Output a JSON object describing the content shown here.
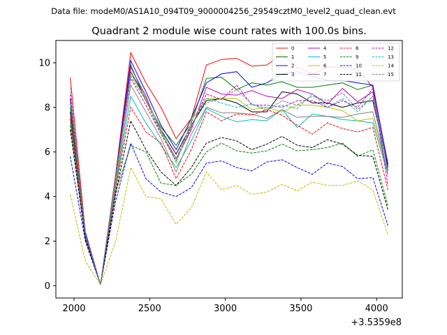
{
  "header": {
    "file_label": "Data file: modeM0/AS1A10_094T09_9000004256_29549cztM0_level2_quad_clean.evt"
  },
  "chart_data": {
    "type": "line",
    "title": "Quadrant 2 module wise count rates with 100.0s bins.",
    "xlabel": "",
    "ylabel": "",
    "x_offset_label": "+3.5359e8",
    "xlim": [
      1880,
      4170
    ],
    "ylim": [
      -0.55,
      11.0
    ],
    "x_ticks": [
      2000,
      2500,
      3000,
      3500,
      4000
    ],
    "y_ticks": [
      0,
      2,
      4,
      6,
      8,
      10
    ],
    "x_tick_labels": [
      "2000",
      "2500",
      "3000",
      "3500",
      "4000"
    ],
    "y_tick_labels": [
      "0",
      "2",
      "4",
      "6",
      "8",
      "10"
    ],
    "grid": false,
    "legend_position": "top-right",
    "x": [
      1975,
      2075,
      2175,
      2275,
      2375,
      2475,
      2575,
      2675,
      2775,
      2875,
      2975,
      3075,
      3175,
      3275,
      3375,
      3475,
      3575,
      3675,
      3775,
      3875,
      3975,
      4075
    ],
    "series": [
      {
        "name": "0",
        "color": "#ff0000",
        "dash": "solid",
        "values": [
          9.35,
          2.4,
          0.05,
          5.0,
          10.45,
          9.1,
          8.0,
          6.6,
          7.5,
          9.9,
          10.15,
          10.2,
          9.85,
          9.9,
          10.4,
          9.8,
          9.5,
          9.8,
          9.8,
          9.7,
          8.9,
          5.5
        ]
      },
      {
        "name": "1",
        "color": "#008000",
        "dash": "solid",
        "values": [
          8.0,
          2.3,
          0.05,
          4.8,
          9.9,
          8.3,
          7.1,
          6.3,
          7.3,
          9.3,
          9.35,
          8.8,
          9.1,
          9.0,
          9.15,
          8.9,
          8.9,
          9.0,
          9.1,
          8.8,
          9.0,
          5.4
        ]
      },
      {
        "name": "2",
        "color": "#0000ff",
        "dash": "solid",
        "values": [
          8.4,
          2.4,
          0.05,
          4.9,
          10.1,
          8.7,
          7.2,
          6.1,
          7.5,
          9.1,
          9.5,
          9.6,
          8.9,
          9.1,
          9.5,
          9.6,
          9.4,
          9.2,
          9.2,
          9.1,
          9.0,
          5.4
        ]
      },
      {
        "name": "3",
        "color": "#000000",
        "dash": "solid",
        "values": [
          7.8,
          2.3,
          0.05,
          4.7,
          9.6,
          8.4,
          7.0,
          5.9,
          7.2,
          8.3,
          8.4,
          8.2,
          7.8,
          7.8,
          8.7,
          8.6,
          8.2,
          8.2,
          8.0,
          8.2,
          8.3,
          5.3
        ]
      },
      {
        "name": "4",
        "color": "#bf00bf",
        "dash": "solid",
        "values": [
          8.3,
          2.3,
          0.05,
          4.8,
          9.8,
          8.5,
          6.9,
          5.7,
          7.0,
          8.9,
          8.6,
          8.55,
          8.75,
          8.5,
          8.4,
          8.8,
          8.6,
          8.15,
          8.85,
          8.25,
          8.7,
          5.2
        ]
      },
      {
        "name": "5",
        "color": "#00bfbf",
        "dash": "solid",
        "values": [
          7.4,
          2.2,
          0.05,
          4.4,
          8.5,
          7.3,
          6.3,
          5.3,
          6.5,
          7.95,
          7.6,
          7.35,
          7.45,
          7.4,
          7.9,
          7.1,
          7.7,
          7.6,
          7.45,
          7.4,
          7.3,
          5.0
        ]
      },
      {
        "name": "6",
        "color": "#bfbf00",
        "dash": "solid",
        "values": [
          7.6,
          2.2,
          0.05,
          4.6,
          9.5,
          8.4,
          7.0,
          5.5,
          7.4,
          8.4,
          8.4,
          8.4,
          7.9,
          8.0,
          7.8,
          8.1,
          8.1,
          8.0,
          7.85,
          7.4,
          7.5,
          5.1
        ]
      },
      {
        "name": "7",
        "color": "#808080",
        "dash": "solid",
        "values": [
          7.5,
          2.2,
          0.05,
          4.5,
          9.0,
          7.8,
          6.6,
          5.1,
          6.8,
          8.0,
          7.75,
          7.75,
          7.7,
          7.5,
          7.9,
          7.55,
          7.6,
          7.6,
          7.55,
          7.7,
          7.8,
          5.1
        ]
      },
      {
        "name": "8",
        "color": "#ff0000",
        "dash": "dashed",
        "values": [
          7.5,
          2.2,
          0.05,
          4.3,
          8.0,
          6.9,
          6.4,
          4.8,
          6.1,
          7.8,
          7.4,
          7.7,
          7.65,
          7.9,
          7.65,
          7.2,
          6.8,
          7.3,
          7.05,
          6.9,
          7.1,
          4.3
        ]
      },
      {
        "name": "9",
        "color": "#008000",
        "dash": "dashed",
        "values": [
          7.2,
          2.1,
          0.05,
          4.2,
          6.3,
          6.0,
          4.6,
          4.5,
          5.0,
          6.0,
          6.4,
          6.05,
          5.95,
          6.05,
          6.35,
          6.05,
          6.1,
          6.2,
          6.4,
          5.8,
          6.1,
          3.6
        ]
      },
      {
        "name": "10",
        "color": "#0000ff",
        "dash": "dashed",
        "values": [
          5.8,
          2.0,
          0.05,
          3.8,
          6.4,
          4.8,
          4.2,
          4.0,
          4.4,
          5.5,
          5.6,
          5.3,
          5.15,
          5.55,
          5.65,
          5.3,
          5.0,
          5.5,
          5.35,
          4.8,
          4.85,
          2.7
        ]
      },
      {
        "name": "11",
        "color": "#000000",
        "dash": "dashed",
        "values": [
          7.0,
          2.1,
          0.05,
          4.1,
          7.4,
          6.1,
          5.1,
          4.5,
          5.3,
          6.4,
          6.65,
          6.5,
          6.1,
          6.35,
          6.7,
          6.3,
          6.2,
          6.55,
          6.35,
          5.85,
          5.8,
          3.4
        ]
      },
      {
        "name": "12",
        "color": "#bf00bf",
        "dash": "dashed",
        "values": [
          8.6,
          2.3,
          0.05,
          4.9,
          9.3,
          8.1,
          6.8,
          5.6,
          7.1,
          8.6,
          8.35,
          9.0,
          8.1,
          8.1,
          8.0,
          8.3,
          8.3,
          8.0,
          8.3,
          8.0,
          8.85,
          4.5
        ]
      },
      {
        "name": "13",
        "color": "#00bfbf",
        "dash": "dashed",
        "values": [
          8.2,
          2.3,
          0.05,
          4.8,
          9.6,
          8.3,
          6.9,
          5.6,
          7.2,
          8.4,
          8.2,
          8.0,
          8.15,
          7.95,
          8.1,
          7.95,
          8.6,
          8.0,
          8.4,
          7.8,
          8.5,
          5.2
        ]
      },
      {
        "name": "14",
        "color": "#bfbf00",
        "dash": "dashed",
        "values": [
          4.1,
          1.1,
          0.05,
          2.0,
          5.3,
          4.0,
          3.9,
          2.75,
          3.5,
          5.1,
          4.3,
          4.5,
          4.1,
          4.2,
          4.55,
          4.25,
          4.65,
          4.5,
          4.5,
          4.7,
          4.3,
          2.3
        ]
      },
      {
        "name": "15",
        "color": "#808080",
        "dash": "dashed",
        "values": [
          8.9,
          2.3,
          0.05,
          4.9,
          9.4,
          8.3,
          6.8,
          5.7,
          7.2,
          8.2,
          8.4,
          8.8,
          8.15,
          7.85,
          8.3,
          8.1,
          8.5,
          8.3,
          8.65,
          7.9,
          8.5,
          4.9
        ]
      }
    ]
  }
}
